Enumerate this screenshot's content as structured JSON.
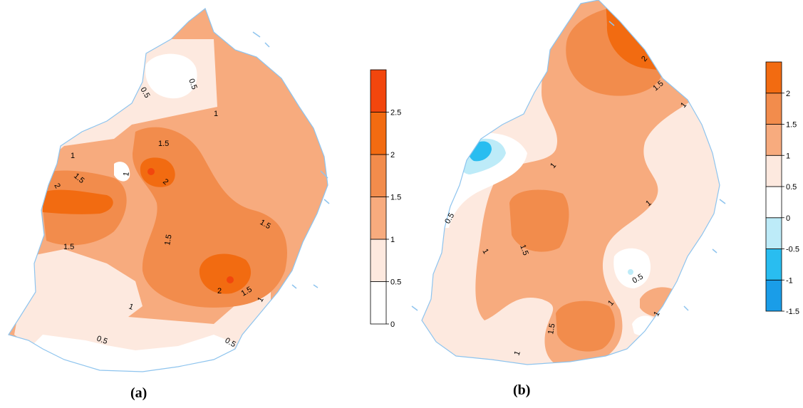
{
  "panels": [
    {
      "id": "a",
      "label": "(a)",
      "contour_labels": [
        "0.5",
        "0.5",
        "1",
        "1",
        "1.5",
        "1",
        "1.5",
        "2",
        "2",
        "1.5",
        "1.5",
        "1.5",
        "2",
        "1.5",
        "1",
        "1",
        "0.5",
        "0.5"
      ],
      "colorbar": {
        "ticks": [
          "0",
          "0.5",
          "1",
          "1.5",
          "2",
          "2.5"
        ],
        "bands": [
          {
            "range": [
              0,
              0.5
            ],
            "color": "#ffffff"
          },
          {
            "range": [
              0.5,
              1
            ],
            "color": "#fde9df"
          },
          {
            "range": [
              1,
              1.5
            ],
            "color": "#f7ab7e"
          },
          {
            "range": [
              1.5,
              2
            ],
            "color": "#f28c4c"
          },
          {
            "range": [
              2,
              2.5
            ],
            "color": "#f26b11"
          },
          {
            "range": [
              2.5,
              3
            ],
            "color": "#f2460d"
          }
        ]
      }
    },
    {
      "id": "b",
      "label": "(b)",
      "contour_labels": [
        "2",
        "1.5",
        "1",
        "1",
        "0.5",
        "1",
        "1.5",
        "1",
        "0.5",
        "1",
        "1.5",
        "1",
        "1"
      ],
      "colorbar": {
        "ticks": [
          "-1.5",
          "-1",
          "-0.5",
          "0",
          "0.5",
          "1",
          "1.5",
          "2"
        ],
        "bands": [
          {
            "range": [
              -1.5,
              -1
            ],
            "color": "#1a9de8"
          },
          {
            "range": [
              -1,
              -0.5
            ],
            "color": "#29bdf0"
          },
          {
            "range": [
              -0.5,
              0
            ],
            "color": "#bdebf8"
          },
          {
            "range": [
              0,
              0.5
            ],
            "color": "#ffffff"
          },
          {
            "range": [
              0.5,
              1
            ],
            "color": "#fde9df"
          },
          {
            "range": [
              1,
              1.5
            ],
            "color": "#f7ab7e"
          },
          {
            "range": [
              1.5,
              2
            ],
            "color": "#f28c4c"
          },
          {
            "range": [
              2,
              2.5
            ],
            "color": "#f26b11"
          }
        ]
      }
    }
  ]
}
